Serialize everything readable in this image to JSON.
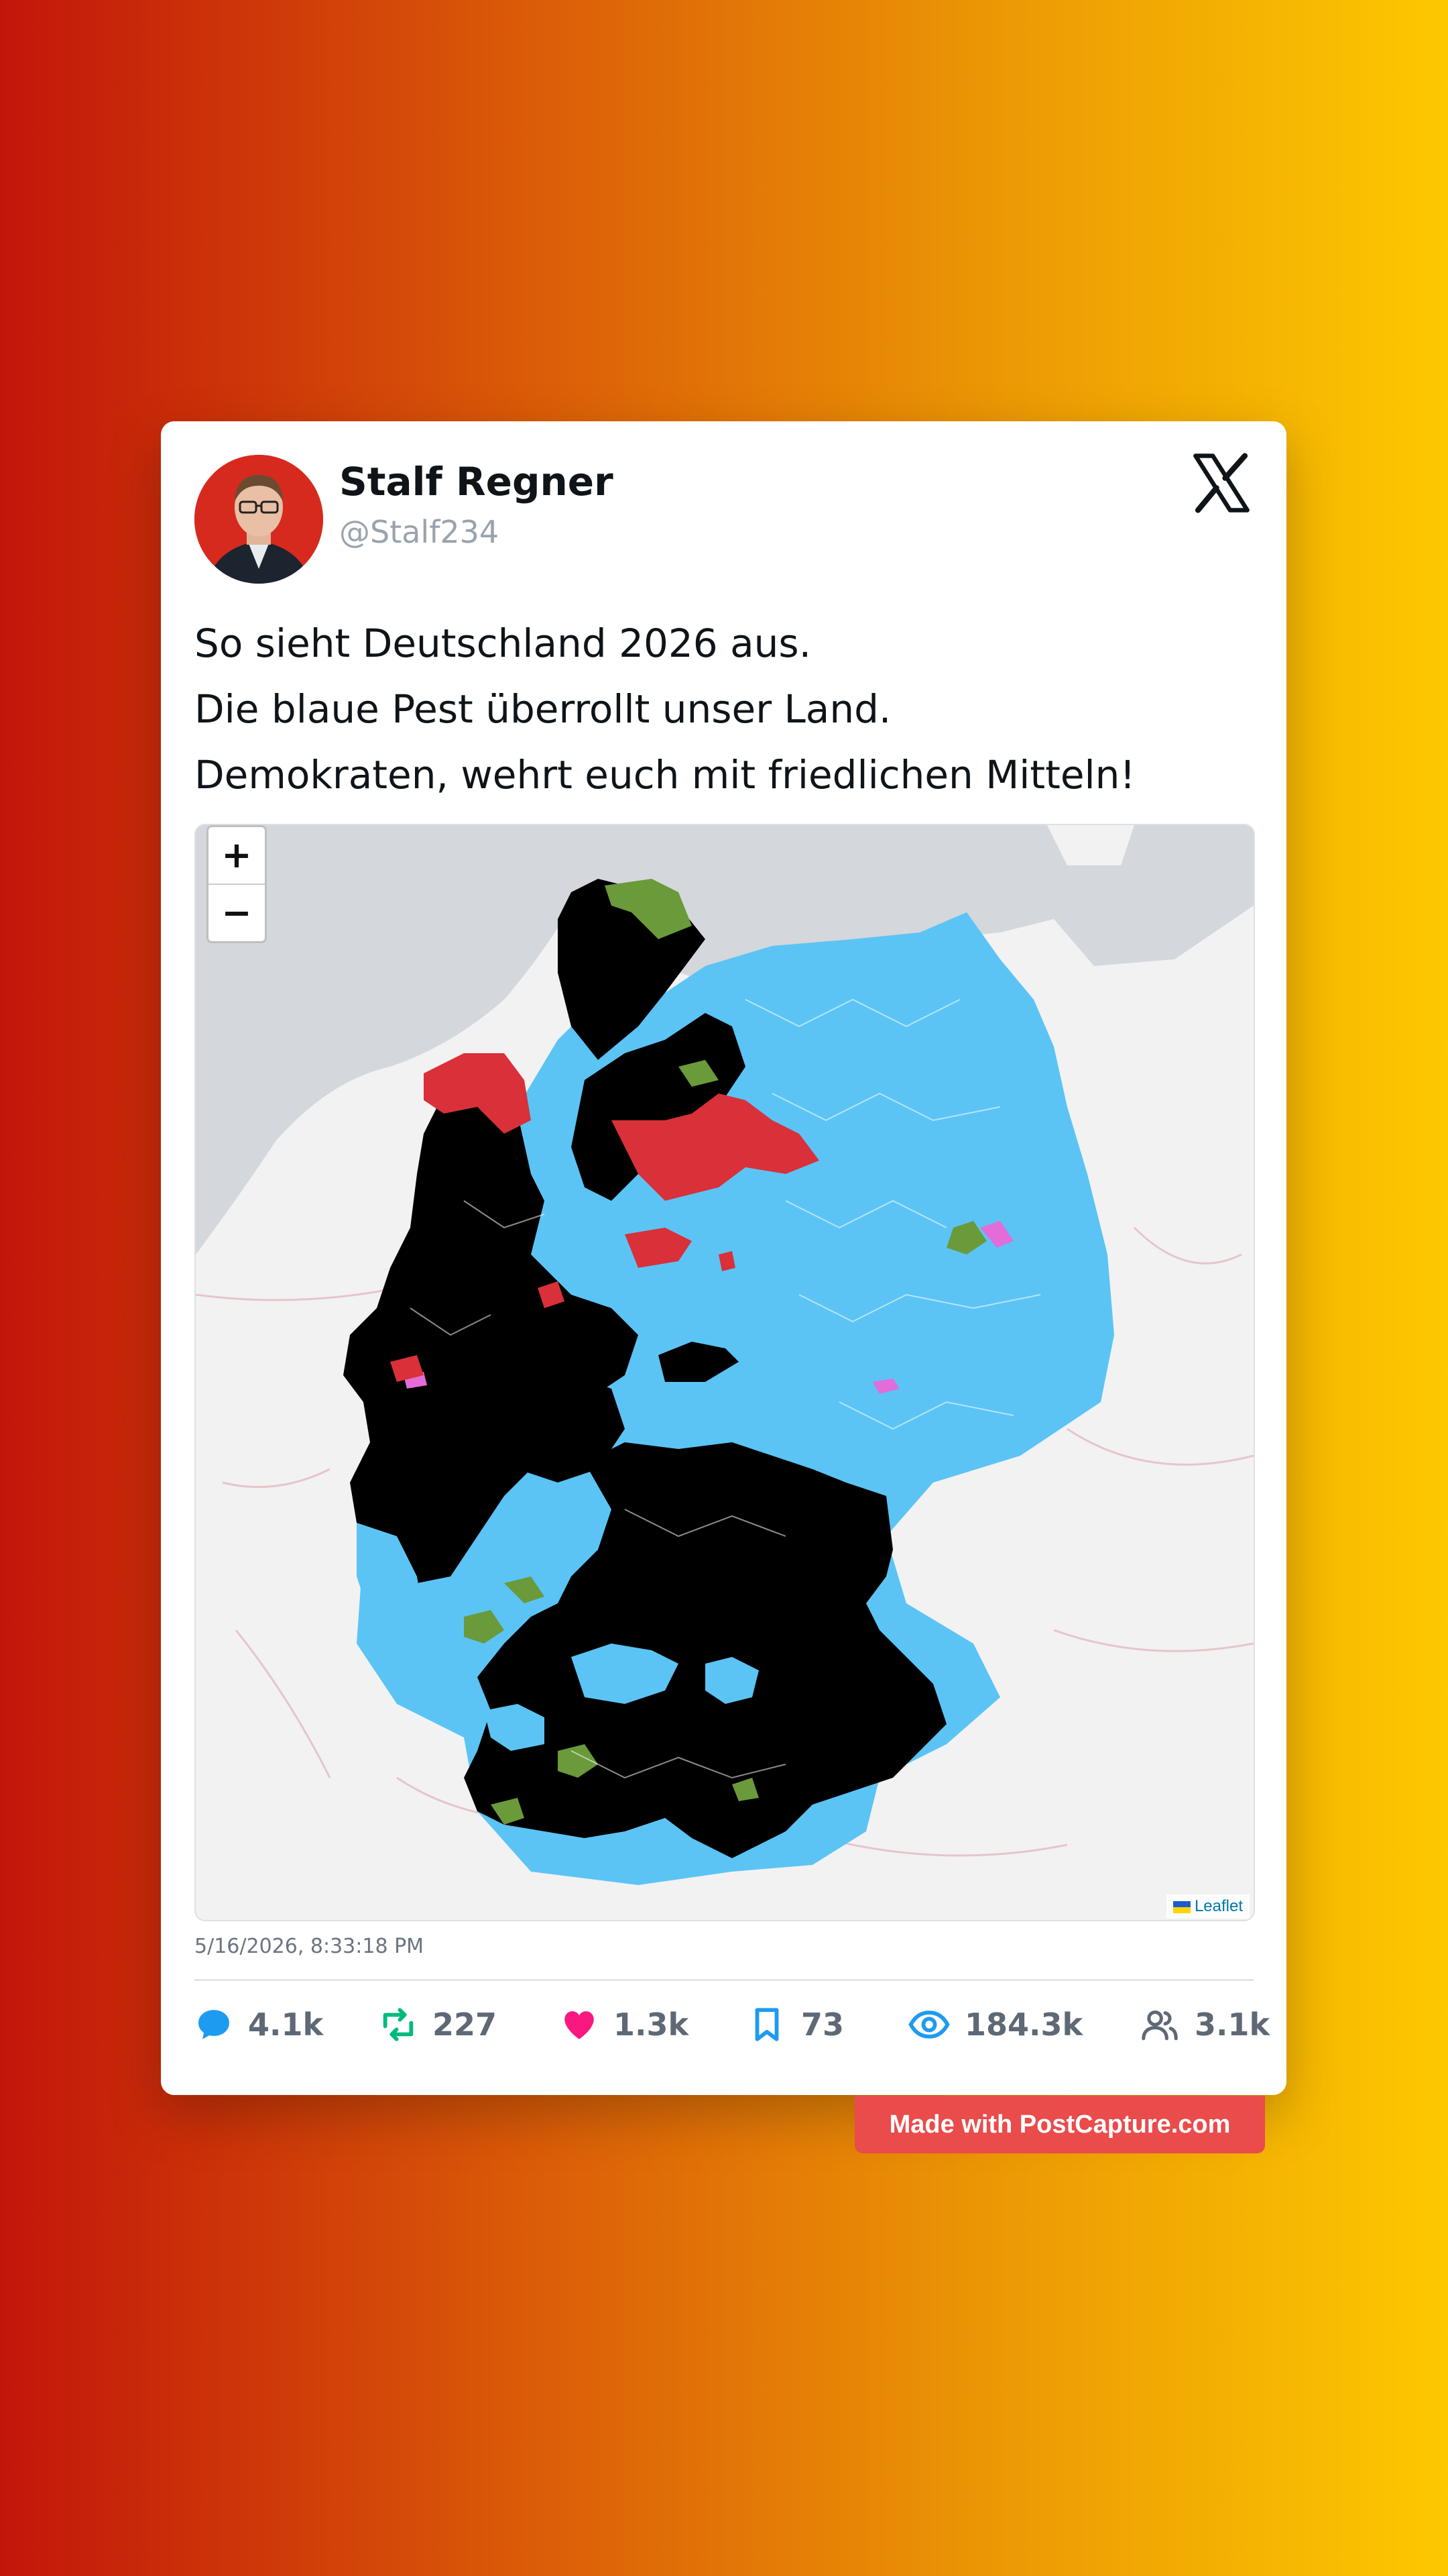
{
  "post": {
    "display_name": "Stalf Regner",
    "handle": "@Stalf234",
    "text_lines": [
      "So sieht Deutschland 2026 aus.",
      "Die blaue Pest überrollt unser Land.",
      "Demokraten, wehrt euch mit friedlichen Mitteln!"
    ],
    "timestamp": "5/16/2026, 8:33:18 PM",
    "platform_icon": "x-logo-icon"
  },
  "map": {
    "zoom_in_label": "+",
    "zoom_out_label": "−",
    "attribution": "Leaflet",
    "colors": {
      "blue": "#5bc4f5",
      "black": "#000000",
      "red": "#d9303a",
      "green": "#6a9a3a",
      "pink": "#e46cd8",
      "sea": "#d4d7db",
      "land": "#f2f2f2"
    }
  },
  "stats": {
    "replies": "4.1k",
    "reposts": "227",
    "likes": "1.3k",
    "bookmarks": "73",
    "views": "184.3k",
    "followers": "3.1k"
  },
  "stat_colors": {
    "replies": "#1d9bf0",
    "reposts": "#00ba7c",
    "likes": "#f91880",
    "bookmarks": "#1d9bf0",
    "views": "#1d9bf0",
    "followers": "#5f6875"
  },
  "footer_badge": "Made with PostCapture.com"
}
